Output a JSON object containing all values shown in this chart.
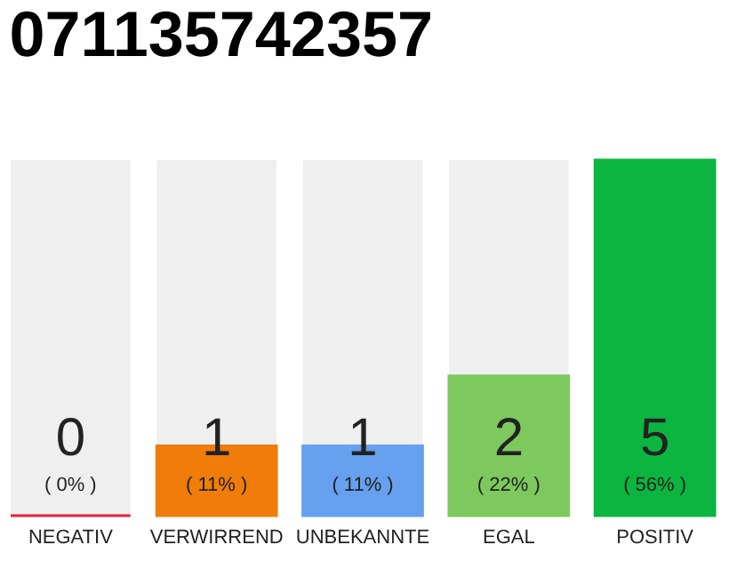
{
  "chart_data": {
    "type": "bar",
    "title": "071135742357",
    "categories": [
      "NEGATIV",
      "VERWIRREND",
      "UNBEKANNTE",
      "EGAL",
      "POSITIV"
    ],
    "values": [
      0,
      11,
      11,
      22,
      56
    ],
    "colors": [
      "#e8203c",
      "#f07c0a",
      "#66a0ee",
      "#7dc95e",
      "#0bb540"
    ],
    "value_labels": [
      "( 0% )",
      "( 11% )",
      "( 11% )",
      "( 22% )",
      "( 56% )"
    ],
    "annotations": [
      "0",
      "1",
      "1",
      "2",
      "5"
    ],
    "tick_labels": "x",
    "grid": false
  }
}
